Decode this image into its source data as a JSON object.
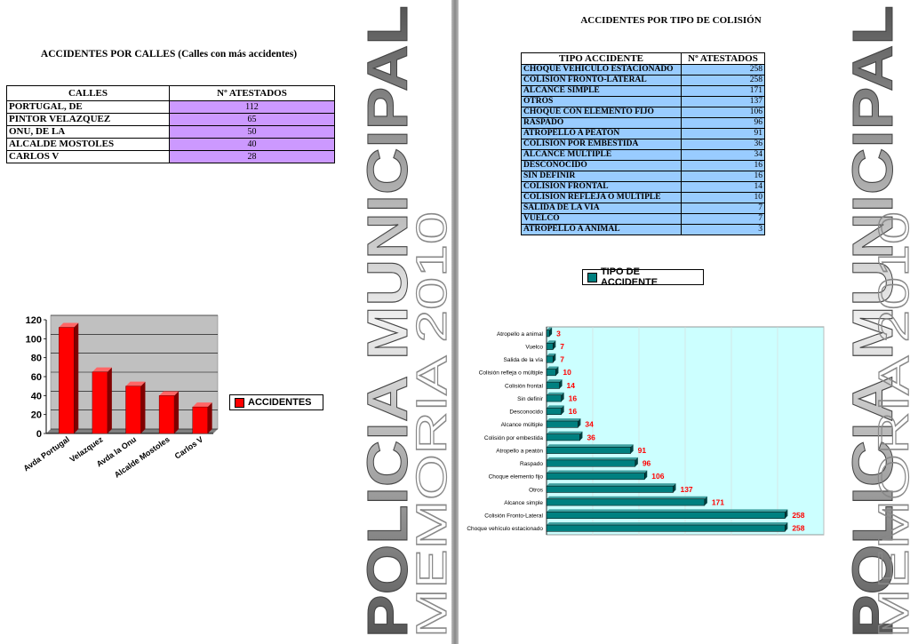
{
  "left_page": {
    "title": "ACCIDENTES POR CALLES (Calles con más accidentes)",
    "table": {
      "headers": [
        "CALLES",
        "Nº ATESTADOS"
      ],
      "rows": [
        {
          "name": "PORTUGAL, DE",
          "value": "112"
        },
        {
          "name": "PINTOR VELAZQUEZ",
          "value": "65"
        },
        {
          "name": "ONU, DE LA",
          "value": "50"
        },
        {
          "name": "ALCALDE MOSTOLES",
          "value": "40"
        },
        {
          "name": "CARLOS V",
          "value": "28"
        }
      ]
    },
    "legend_label": "ACCIDENTES",
    "banner_text": [
      "POLICIA MUNICIPAL",
      "MEMORIA 2010"
    ]
  },
  "right_page": {
    "title": "ACCIDENTES POR TIPO DE COLISIÓN",
    "table": {
      "headers": [
        "TIPO ACCIDENTE",
        "Nº ATESTADOS"
      ],
      "rows": [
        {
          "name": "CHOQUE VEHICULO ESTACIONADO",
          "value": "258"
        },
        {
          "name": "COLISION FRONTO-LATERAL",
          "value": "258"
        },
        {
          "name": "ALCANCE SIMPLE",
          "value": "171"
        },
        {
          "name": "OTROS",
          "value": "137"
        },
        {
          "name": "CHOQUE CON ELEMENTO FIJO",
          "value": "106"
        },
        {
          "name": "RASPADO",
          "value": "96"
        },
        {
          "name": "ATROPELLO A PEATON",
          "value": "91"
        },
        {
          "name": "COLISION POR EMBESTIDA",
          "value": "36"
        },
        {
          "name": "ALCANCE MULTIPLE",
          "value": "34"
        },
        {
          "name": "DESCONOCIDO",
          "value": "16"
        },
        {
          "name": "SIN DEFINIR",
          "value": "16"
        },
        {
          "name": "COLISION FRONTAL",
          "value": "14"
        },
        {
          "name": "COLISION REFLEJA O MULTIPLE",
          "value": "10"
        },
        {
          "name": "SALIDA DE LA VIA",
          "value": "7"
        },
        {
          "name": "VUELCO",
          "value": "7"
        },
        {
          "name": "ATROPELLO A ANIMAL",
          "value": "3"
        }
      ]
    },
    "legend_label": "TIPO DE ACCIDENTE",
    "banner_text": [
      "POLICIA MUNICIPAL",
      "MEMORIA 2010"
    ]
  },
  "colors": {
    "bar_red": "#ff0000",
    "bar_teal": "#008080",
    "lilac_cells": "#cc99ff",
    "blue_cells": "#99ccff",
    "plot_grey": "#c0c0c0",
    "plot_cyan": "#ccffff"
  },
  "chart_data": [
    {
      "type": "bar",
      "categories": [
        "Avda Portugal",
        "Velazquez",
        "Avda la Onu",
        "Alcalde Mostoles",
        "Carlos V"
      ],
      "series": [
        {
          "name": "ACCIDENTES",
          "values": [
            112,
            65,
            50,
            40,
            28
          ]
        }
      ],
      "ylim": [
        0,
        120
      ],
      "yticks": [
        0,
        20,
        40,
        60,
        80,
        100,
        120
      ],
      "grid": true,
      "legend_position": "right"
    },
    {
      "type": "bar",
      "orientation": "horizontal",
      "categories": [
        "Atropello a animal",
        "Vuelco",
        "Salida de la vía",
        "Colisión refleja o múltiple",
        "Colisión frontal",
        "Sin definir",
        "Desconocido",
        "Alcance múltiple",
        "Colisión por embestida",
        "Atropello a peatón",
        "Raspado",
        "Choque elemento fijo",
        "Otros",
        "Alcance simple",
        "Colisión Fronto-Lateral",
        "Choque vehículo estacionado"
      ],
      "series": [
        {
          "name": "TIPO DE ACCIDENTE",
          "values": [
            3,
            7,
            7,
            10,
            14,
            16,
            16,
            34,
            36,
            91,
            96,
            106,
            137,
            171,
            258,
            258
          ]
        }
      ],
      "data_labels": [
        "3",
        "7",
        "7",
        "10",
        "14",
        "16",
        "16",
        "34",
        "36",
        "91",
        "96",
        "106",
        "137",
        "171",
        "258",
        "258"
      ],
      "xlim": [
        0,
        300
      ],
      "grid": true,
      "legend_position": "top"
    }
  ]
}
